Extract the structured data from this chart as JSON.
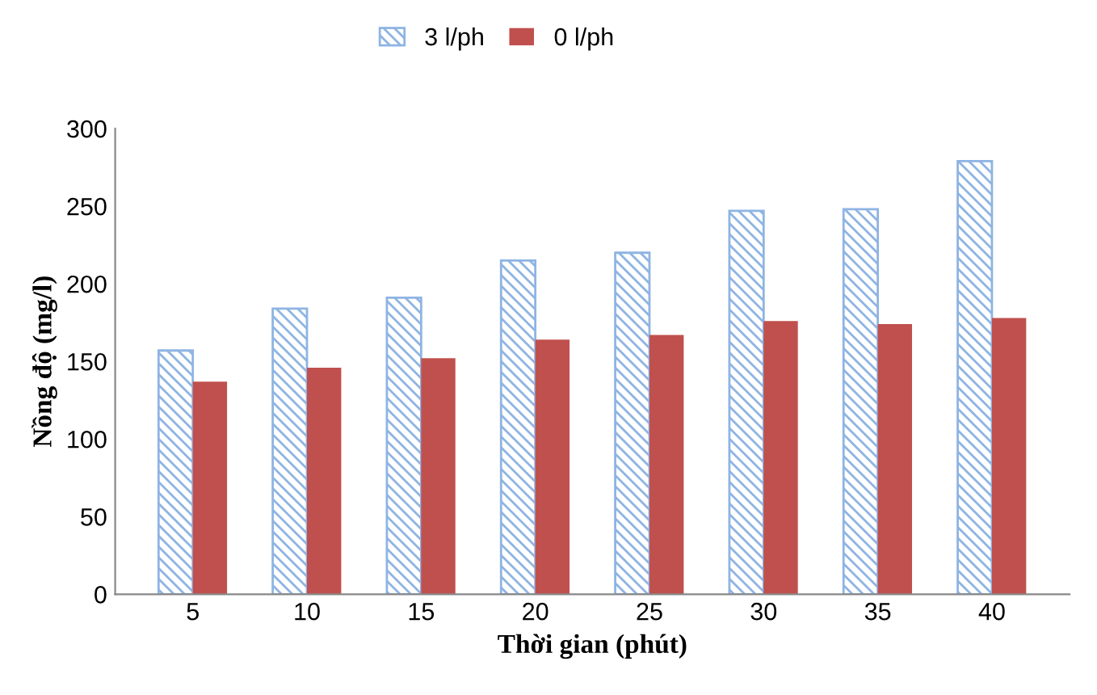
{
  "chart_data": {
    "type": "bar",
    "xlabel": "Thời gian (phút)",
    "ylabel": "Nồng độ (mg/l)",
    "categories": [
      "5",
      "10",
      "15",
      "20",
      "25",
      "30",
      "35",
      "40"
    ],
    "series": [
      {
        "name": "3 l/ph",
        "color": "#8eb4e3",
        "values": [
          157,
          184,
          191,
          215,
          220,
          247,
          248,
          279
        ]
      },
      {
        "name": "0 l/ph",
        "color": "#c0504d",
        "values": [
          137,
          146,
          152,
          164,
          167,
          176,
          174,
          178
        ]
      }
    ],
    "ylim": [
      0,
      300
    ],
    "yticks": [
      0,
      50,
      100,
      150,
      200,
      250,
      300
    ],
    "grid": false,
    "legend": "top"
  }
}
